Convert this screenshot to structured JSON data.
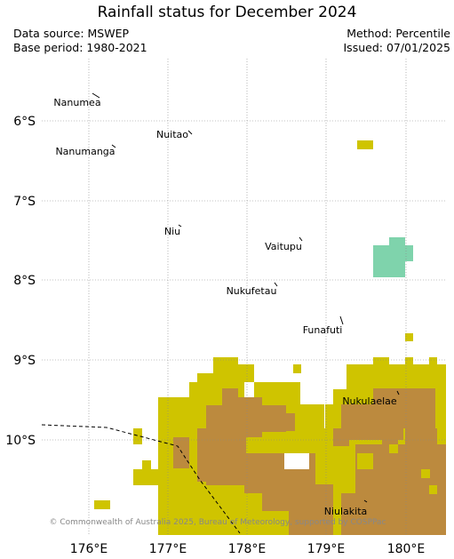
{
  "title": "Rainfall status for December 2024",
  "meta": {
    "data_source": "Data source: MSWEP",
    "base_period": "Base period: 1980-2021",
    "method": "Method: Percentile",
    "issued": "Issued: 07/01/2025"
  },
  "colors": {
    "tan": "#cfc400",
    "brown": "#bc8a3e",
    "green": "#7fd3ac",
    "white": "#ffffff"
  },
  "axes": {
    "lat_labels": [
      "6°S",
      "7°S",
      "8°S",
      "9°S",
      "10°S"
    ],
    "lon_labels": [
      "176°E",
      "177°E",
      "178°E",
      "179°E",
      "180°E"
    ]
  },
  "islands": [
    "Nanumea",
    "Nuitao",
    "Nanumanga",
    "Niu",
    "Vaitupu",
    "Nukufetau",
    "Funafuti",
    "Nukulaelae",
    "Niulakita"
  ],
  "copyright": "© Commonwealth of Australia 2025, Bureau of Meteorology, supported by COSPPac"
}
